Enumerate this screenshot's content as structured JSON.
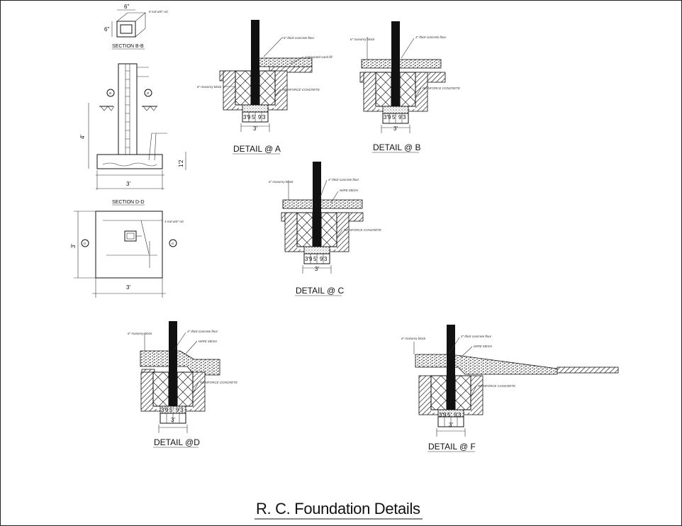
{
  "drawing": {
    "title": "R. C. Foundation Details",
    "sections": {
      "bb": {
        "label": "SECTION B-B",
        "dim_w": "6\"",
        "dim_h": "6\"",
        "note": "8 rod w/6\" o/c"
      },
      "main": {
        "dim_height": "4'",
        "dim_footing": "1'2",
        "dim_width": "3'"
      },
      "dd": {
        "label": "SECTION D-D",
        "dim_w": "3'",
        "dim_h": "3'",
        "note": "4 rod w/6\" o/c"
      }
    },
    "markers": {
      "b": "B",
      "d": "D"
    },
    "details": {
      "a": {
        "label": "DETAIL @ A",
        "note1": "4\" thick concrete floor",
        "note2": "compacted sand fill",
        "note3": "6\" masonry block",
        "note4": "REINFORCE CONCRETE",
        "dims": [
          "3'9",
          "5'",
          "9'3"
        ],
        "total": "3'"
      },
      "b": {
        "label": "DETAIL @ B",
        "note1": "4\" thick concrete floor",
        "note3": "6\" masonry block",
        "note4": "REINFORCE CONCRETE",
        "dims": [
          "3'9",
          "5'",
          "9'3"
        ],
        "total": "3'"
      },
      "c": {
        "label": "DETAIL @ C",
        "note1": "4\" thick concrete floor",
        "note2": "WIRE MESH",
        "note3": "6\" masonry block",
        "note4": "REINFORCE CONCRETE",
        "dims": [
          "3'9",
          "5'",
          "9'3"
        ],
        "total": "3'"
      },
      "d": {
        "label": "DETAIL @D",
        "note1": "4\" thick concrete floor",
        "note2": "WIRE MESH",
        "note3": "6\" masonry block",
        "note4": "REINFORCE CONCRETE",
        "dims": [
          "3'9",
          "5'",
          "9'3"
        ],
        "total": "3'"
      },
      "f": {
        "label": "DETAIL @ F",
        "note1": "4\" thick concrete floor",
        "note2": "WIRE MESH",
        "note3": "6\" masonry block",
        "note4": "REINFORCE CONCRETE",
        "dims": [
          "3'9",
          "5'",
          "9'3"
        ],
        "total": "3'"
      }
    }
  }
}
